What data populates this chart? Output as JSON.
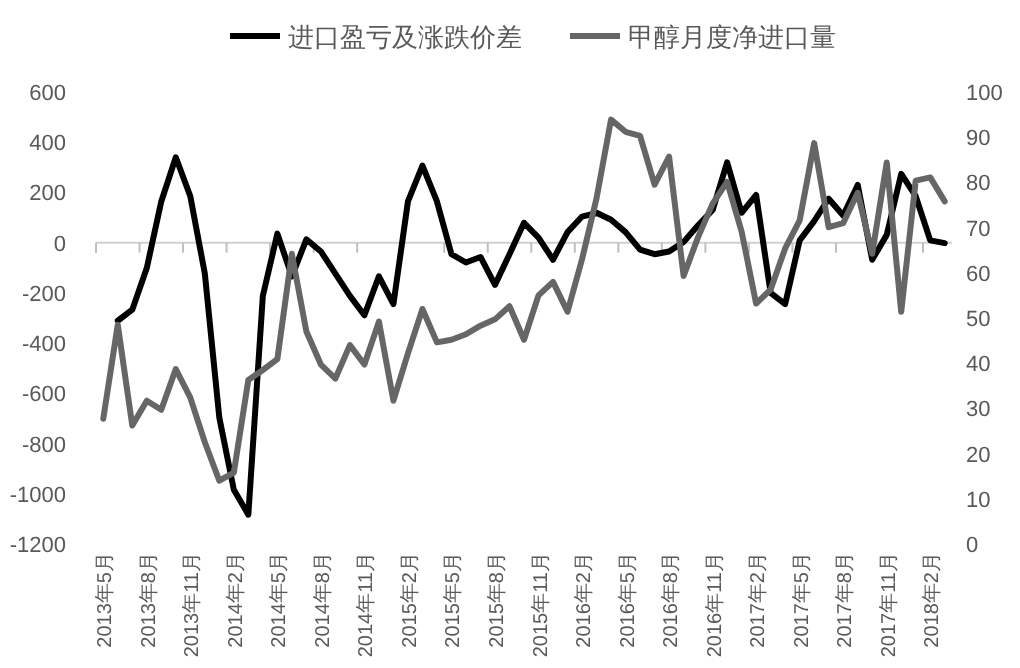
{
  "chart_data": {
    "type": "line",
    "categories": [
      "2013年5月",
      null,
      null,
      "2013年8月",
      null,
      null,
      "2013年11月",
      null,
      null,
      "2014年2月",
      null,
      null,
      "2014年5月",
      null,
      null,
      "2014年8月",
      null,
      null,
      "2014年11月",
      null,
      null,
      "2015年2月",
      null,
      null,
      "2015年5月",
      null,
      null,
      "2015年8月",
      null,
      null,
      "2015年11月",
      null,
      null,
      "2016年2月",
      null,
      null,
      "2016年5月",
      null,
      null,
      "2016年8月",
      null,
      null,
      "2016年11月",
      null,
      null,
      "2017年2月",
      null,
      null,
      "2017年5月",
      null,
      null,
      "2017年8月",
      null,
      null,
      "2017年11月",
      null,
      null,
      "2018年2月",
      null
    ],
    "series": [
      {
        "name": "进口盈亏及涨跌价差",
        "color": "#000000",
        "values": [
          null,
          -311,
          -267,
          -101,
          164,
          340,
          185,
          -123,
          -697,
          -984,
          -1083,
          -212,
          36,
          -134,
          13,
          -35,
          -123,
          -212,
          -289,
          -134,
          -245,
          164,
          307,
          164,
          -46,
          -79,
          -57,
          -168,
          -46,
          79,
          20,
          -68,
          42,
          104,
          119,
          91,
          42,
          -28,
          -46,
          -35,
          3,
          69,
          130,
          320,
          119,
          190,
          -200,
          -245,
          9,
          86,
          175,
          108,
          230,
          -68,
          31,
          274,
          185,
          9,
          -2
        ]
      },
      {
        "name": "甲醇月度净进口量",
        "color": "#666666",
        "axis": "y2",
        "values": [
          27.7,
          48.5,
          26.2,
          31.7,
          29.7,
          38.7,
          32.4,
          22.5,
          14,
          15.8,
          36.3,
          38.5,
          40.9,
          64.2,
          47,
          39.7,
          36.6,
          44,
          39.7,
          49.2,
          31.7,
          42.2,
          52,
          44.6,
          45.2,
          46.4,
          48.3,
          49.7,
          52.6,
          45.2,
          55,
          58,
          51.4,
          63,
          76.5,
          93.9,
          91.2,
          90.3,
          79.5,
          85.7,
          59.3,
          67.9,
          75.3,
          80.1,
          69.1,
          53.2,
          56.3,
          65.4,
          71.6,
          88.7,
          70.1,
          71,
          77.7,
          64.2,
          84.4,
          51.4,
          80.4,
          81.1,
          75.8
        ]
      }
    ],
    "ylim": [
      -1200,
      600
    ],
    "yticks": [
      -1200,
      -1000,
      -800,
      -600,
      -400,
      -200,
      0,
      200,
      400,
      600
    ],
    "y2lim": [
      0,
      100
    ],
    "y2ticks": [
      0,
      10,
      20,
      30,
      40,
      50,
      60,
      70,
      80,
      90,
      100
    ],
    "legend": "top"
  }
}
